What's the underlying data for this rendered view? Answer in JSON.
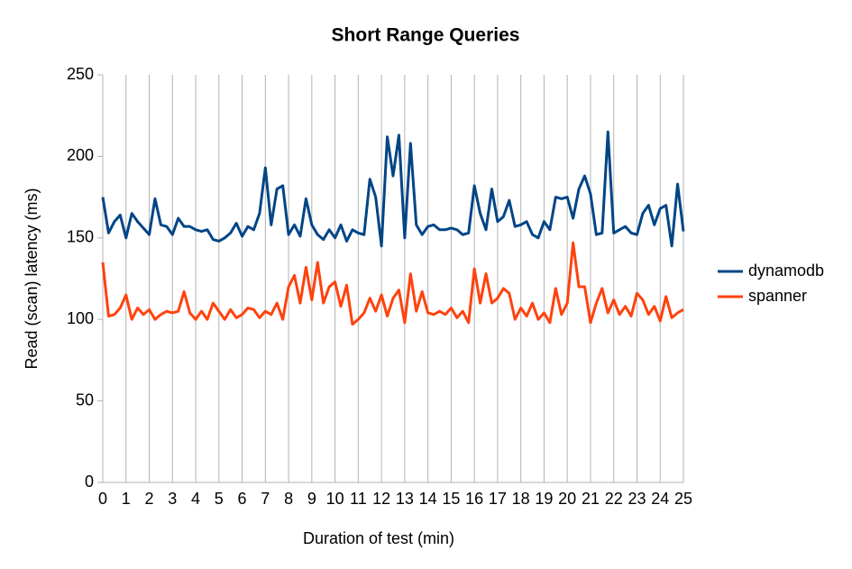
{
  "chart_data": {
    "type": "line",
    "title": "Short Range Queries",
    "x_label": "Duration of test (min)",
    "y_label": "Read (scan) latency (ms)",
    "xlim": [
      0,
      25
    ],
    "xticks": [
      0,
      1,
      2,
      3,
      4,
      5,
      6,
      7,
      8,
      9,
      10,
      11,
      12,
      13,
      14,
      15,
      16,
      17,
      18,
      19,
      20,
      21,
      22,
      23,
      24,
      25
    ],
    "ylim": [
      0,
      250
    ],
    "yticks": [
      0,
      50,
      100,
      150,
      200,
      250
    ],
    "grid": "x",
    "legend": "right",
    "x": [
      0,
      0.25,
      0.5,
      0.75,
      1,
      1.25,
      1.5,
      1.75,
      2,
      2.25,
      2.5,
      2.75,
      3,
      3.25,
      3.5,
      3.75,
      4,
      4.25,
      4.5,
      4.75,
      5,
      5.25,
      5.5,
      5.75,
      6,
      6.25,
      6.5,
      6.75,
      7,
      7.25,
      7.5,
      7.75,
      8,
      8.25,
      8.5,
      8.75,
      9,
      9.25,
      9.5,
      9.75,
      10,
      10.25,
      10.5,
      10.75,
      11,
      11.25,
      11.5,
      11.75,
      12,
      12.25,
      12.5,
      12.75,
      13,
      13.25,
      13.5,
      13.75,
      14,
      14.25,
      14.5,
      14.75,
      15,
      15.25,
      15.5,
      15.75,
      16,
      16.25,
      16.5,
      16.75,
      17,
      17.25,
      17.5,
      17.75,
      18,
      18.25,
      18.5,
      18.75,
      19,
      19.25,
      19.5,
      19.75,
      20,
      20.25,
      20.5,
      20.75,
      21,
      21.25,
      21.5,
      21.75,
      22,
      22.25,
      22.5,
      22.75,
      23,
      23.25,
      23.5,
      23.75,
      24,
      24.25,
      24.5,
      24.75,
      25
    ],
    "series": [
      {
        "name": "dynamodb",
        "color": "#004586",
        "values": [
          175,
          153,
          160,
          164,
          150,
          165,
          160,
          156,
          152,
          174,
          158,
          157,
          152,
          162,
          157,
          157,
          155,
          154,
          155,
          149,
          148,
          150,
          153,
          159,
          151,
          157,
          155,
          165,
          193,
          158,
          180,
          182,
          152,
          158,
          151,
          174,
          158,
          152,
          149,
          155,
          150,
          158,
          148,
          155,
          153,
          152,
          186,
          175,
          145,
          212,
          188,
          213,
          150,
          208,
          158,
          152,
          157,
          158,
          155,
          155,
          156,
          155,
          152,
          153,
          182,
          165,
          155,
          180,
          160,
          163,
          173,
          157,
          158,
          160,
          152,
          150,
          160,
          155,
          175,
          174,
          175,
          162,
          180,
          188,
          177,
          152,
          153,
          215,
          153,
          155,
          157,
          153,
          152,
          165,
          170,
          158,
          168,
          170,
          145,
          183,
          154
        ]
      },
      {
        "name": "spanner",
        "color": "#ff420e",
        "values": [
          135,
          102,
          103,
          107,
          115,
          100,
          107,
          103,
          106,
          100,
          103,
          105,
          104,
          105,
          117,
          104,
          100,
          105,
          100,
          110,
          105,
          100,
          106,
          101,
          103,
          107,
          106,
          101,
          105,
          103,
          110,
          100,
          120,
          127,
          110,
          132,
          112,
          135,
          110,
          120,
          123,
          108,
          121,
          97,
          100,
          104,
          113,
          105,
          115,
          102,
          113,
          118,
          98,
          128,
          105,
          117,
          104,
          103,
          105,
          103,
          107,
          101,
          105,
          98,
          131,
          110,
          128,
          110,
          113,
          119,
          116,
          100,
          107,
          102,
          110,
          100,
          104,
          98,
          119,
          103,
          110,
          147,
          120,
          120,
          98,
          110,
          119,
          104,
          112,
          103,
          108,
          102,
          116,
          112,
          103,
          108,
          99,
          114,
          101,
          104,
          106
        ]
      }
    ]
  }
}
